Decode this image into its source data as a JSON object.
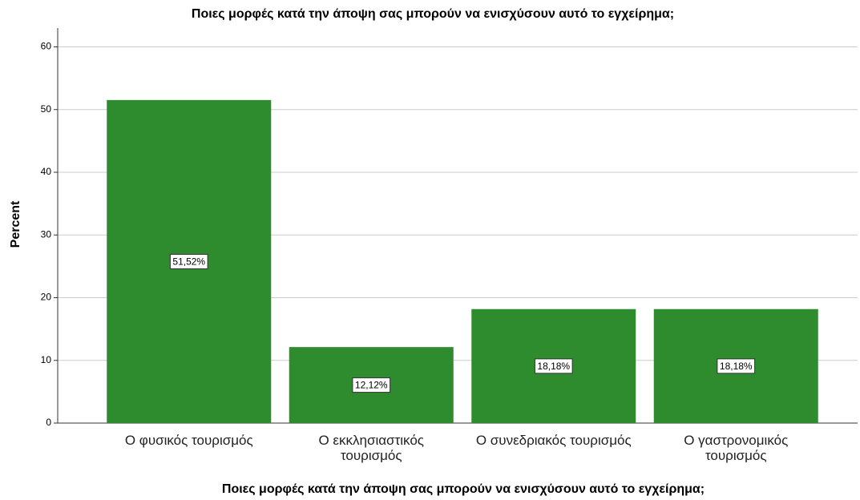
{
  "chart_data": {
    "type": "bar",
    "title": "Ποιες μορφές κατά την άποψη σας μπορούν να ενισχύσουν αυτό το εγχείρημα;",
    "x_label": "Ποιες μορφές κατά την άποψη σας μπορούν να ενισχύσουν αυτό το εγχείρημα;",
    "y_label": "Percent",
    "categories": [
      "Ο φυσικός τουρισμός",
      "Ο εκκλησιαστικός τουρισμός",
      "Ο συνεδριακός τουρισμός",
      "Ο γαστρονομικός τουρισμός"
    ],
    "values": [
      51.52,
      12.12,
      18.18,
      18.18
    ],
    "value_labels": [
      "51,52%",
      "12,12%",
      "18,18%",
      "18,18%"
    ],
    "color": "#2e8b2e",
    "ylim": [
      0,
      63
    ],
    "yticks": [
      0,
      10,
      20,
      30,
      40,
      50,
      60
    ],
    "grid": true
  }
}
